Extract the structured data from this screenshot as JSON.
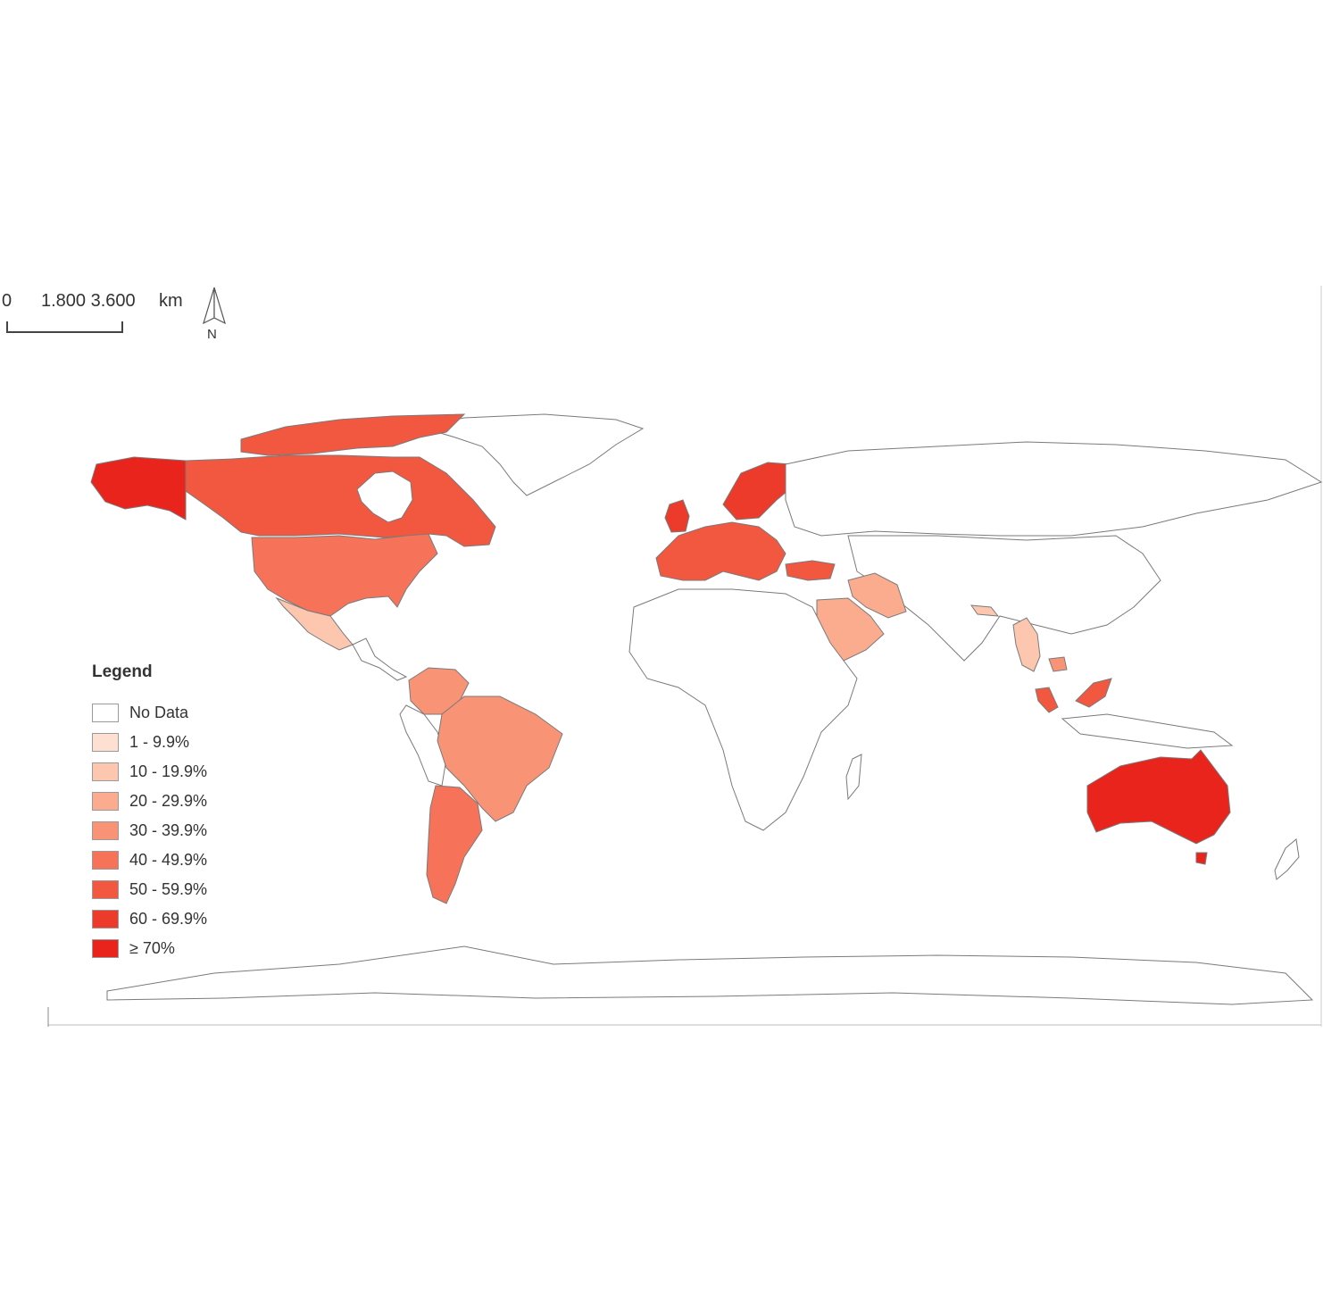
{
  "scale_bar": {
    "zero": "0",
    "ticks": "1.800 3.600",
    "unit": "km"
  },
  "north_arrow": {
    "label": "N"
  },
  "legend": {
    "title": "Legend",
    "classes": [
      {
        "label": "No Data",
        "color": "#ffffff"
      },
      {
        "label": "1 - 9.9%",
        "color": "#fde0d2"
      },
      {
        "label": "10 - 19.9%",
        "color": "#fcc7ae"
      },
      {
        "label": "20 - 29.9%",
        "color": "#fcac8e"
      },
      {
        "label": "30 - 39.9%",
        "color": "#f99375"
      },
      {
        "label": "40 - 49.9%",
        "color": "#f6735a"
      },
      {
        "label": "50 - 59.9%",
        "color": "#f25740"
      },
      {
        "label": "60 - 69.9%",
        "color": "#ec3a2b"
      },
      {
        "label": "≥ 70%",
        "color": "#e8241c"
      }
    ]
  },
  "map": {
    "background": "#ffffff",
    "border_color": "#7a7a7a",
    "regions": [
      {
        "name": "alaska",
        "class": 8
      },
      {
        "name": "canada",
        "class": 6
      },
      {
        "name": "usa",
        "class": 5
      },
      {
        "name": "mexico",
        "class": 2
      },
      {
        "name": "colombia-venezuela",
        "class": 4
      },
      {
        "name": "brazil",
        "class": 4
      },
      {
        "name": "argentina-chile",
        "class": 5
      },
      {
        "name": "western-europe",
        "class": 6
      },
      {
        "name": "scandinavia",
        "class": 7
      },
      {
        "name": "uk",
        "class": 7
      },
      {
        "name": "turkey",
        "class": 6
      },
      {
        "name": "iran",
        "class": 3
      },
      {
        "name": "saudi-arabia",
        "class": 3
      },
      {
        "name": "myanmar-thailand",
        "class": 2
      },
      {
        "name": "cambodia",
        "class": 4
      },
      {
        "name": "malaysia",
        "class": 6
      },
      {
        "name": "borneo-malaysia",
        "class": 6
      },
      {
        "name": "australia",
        "class": 8
      }
    ]
  }
}
